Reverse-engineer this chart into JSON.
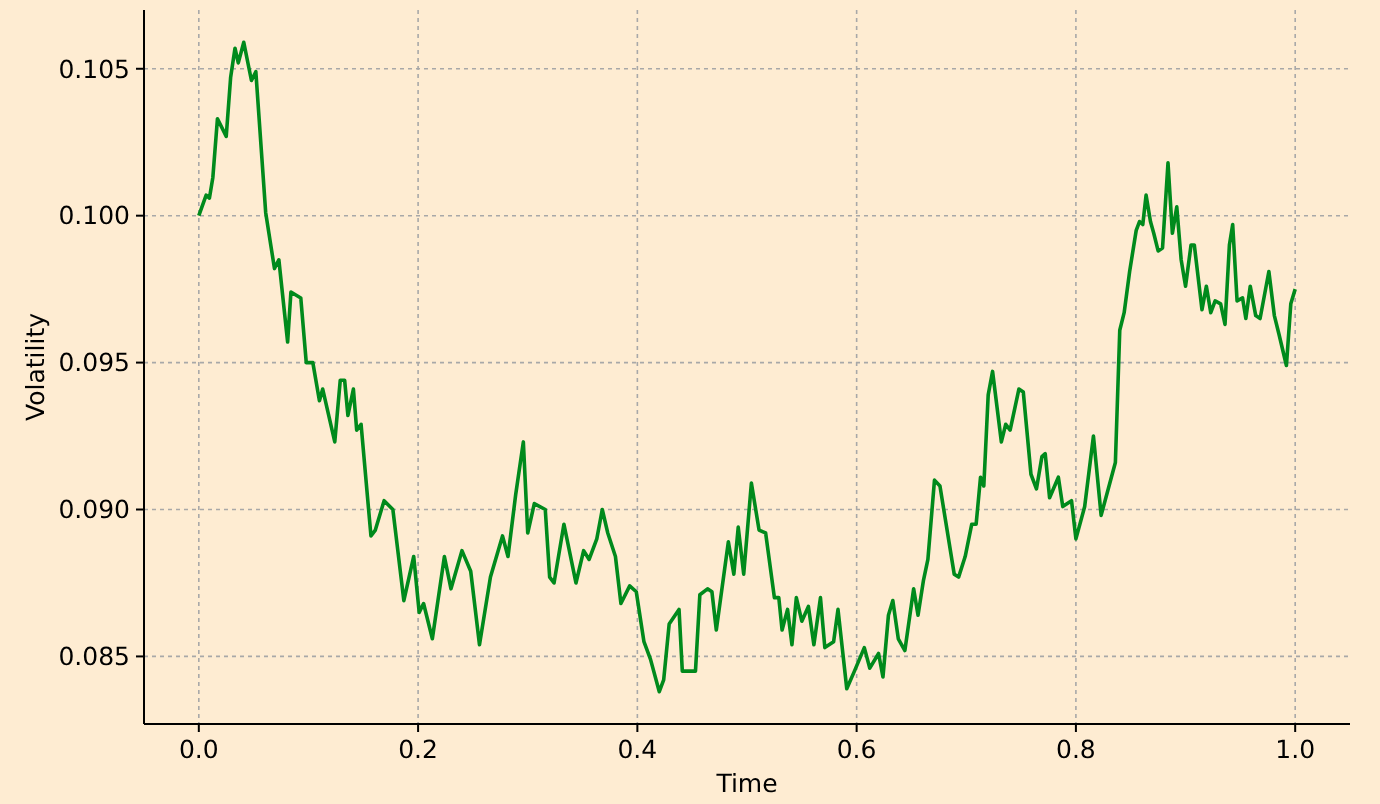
{
  "chart_data": {
    "type": "line",
    "xlabel": "Time",
    "ylabel": "Volatility",
    "xlim": [
      -0.05,
      1.05
    ],
    "ylim": [
      0.0827,
      0.107
    ],
    "xticks": [
      {
        "value": 0,
        "label": "0.0"
      },
      {
        "value": 0.2,
        "label": "0.2"
      },
      {
        "value": 0.4,
        "label": "0.4"
      },
      {
        "value": 0.6,
        "label": "0.6"
      },
      {
        "value": 0.8,
        "label": "0.8"
      },
      {
        "value": 1,
        "label": "1.0"
      }
    ],
    "yticks": [
      {
        "value": 0.085,
        "label": "0.085"
      },
      {
        "value": 0.09,
        "label": "0.090"
      },
      {
        "value": 0.095,
        "label": "0.095"
      },
      {
        "value": 0.1,
        "label": "0.100"
      },
      {
        "value": 0.105,
        "label": "0.105"
      }
    ],
    "grid": true,
    "line_style": "solid",
    "marker": "none",
    "series": [
      {
        "color": "#008a1c",
        "x": [
          0,
          0.0067,
          0.0097,
          0.0128,
          0.017,
          0.025,
          0.029,
          0.033,
          0.036,
          0.041,
          0.048,
          0.052,
          0.061,
          0.069,
          0.073,
          0.081,
          0.084,
          0.093,
          0.098,
          0.104,
          0.11,
          0.113,
          0.124,
          0.129,
          0.133,
          0.136,
          0.141,
          0.144,
          0.148,
          0.157,
          0.161,
          0.169,
          0.177,
          0.187,
          0.196,
          0.201,
          0.205,
          0.213,
          0.224,
          0.23,
          0.24,
          0.248,
          0.256,
          0.266,
          0.277,
          0.282,
          0.289,
          0.296,
          0.3,
          0.306,
          0.316,
          0.32,
          0.324,
          0.333,
          0.344,
          0.351,
          0.356,
          0.363,
          0.368,
          0.373,
          0.38,
          0.385,
          0.393,
          0.399,
          0.406,
          0.412,
          0.42,
          0.424,
          0.429,
          0.438,
          0.441,
          0.453,
          0.457,
          0.464,
          0.468,
          0.472,
          0.483,
          0.488,
          0.492,
          0.497,
          0.504,
          0.511,
          0.517,
          0.525,
          0.529,
          0.532,
          0.537,
          0.541,
          0.545,
          0.55,
          0.556,
          0.561,
          0.567,
          0.571,
          0.579,
          0.583,
          0.591,
          0.598,
          0.607,
          0.612,
          0.62,
          0.624,
          0.629,
          0.633,
          0.638,
          0.644,
          0.652,
          0.656,
          0.661,
          0.665,
          0.671,
          0.676,
          0.689,
          0.693,
          0.699,
          0.705,
          0.709,
          0.713,
          0.716,
          0.72,
          0.724,
          0.732,
          0.736,
          0.74,
          0.748,
          0.752,
          0.759,
          0.764,
          0.769,
          0.772,
          0.776,
          0.784,
          0.788,
          0.796,
          0.8,
          0.808,
          0.816,
          0.823,
          0.836,
          0.84,
          0.844,
          0.849,
          0.855,
          0.858,
          0.861,
          0.864,
          0.868,
          0.871,
          0.875,
          0.879,
          0.884,
          0.888,
          0.892,
          0.896,
          0.9,
          0.905,
          0.908,
          0.915,
          0.919,
          0.923,
          0.927,
          0.932,
          0.936,
          0.94,
          0.943,
          0.947,
          0.952,
          0.955,
          0.959,
          0.964,
          0.968,
          0.976,
          0.981,
          0.985,
          0.992,
          0.996,
          1.0
        ],
        "values": [
          0.1,
          0.1007,
          0.1006,
          0.1013,
          0.1033,
          0.1027,
          0.1047,
          0.1057,
          0.1052,
          0.1059,
          0.1046,
          0.1049,
          0.1001,
          0.0982,
          0.0985,
          0.0957,
          0.0974,
          0.0972,
          0.095,
          0.095,
          0.0937,
          0.0941,
          0.0923,
          0.0944,
          0.0944,
          0.0932,
          0.0941,
          0.0927,
          0.0929,
          0.0891,
          0.0893,
          0.0903,
          0.09,
          0.0869,
          0.0884,
          0.0865,
          0.0868,
          0.0856,
          0.0884,
          0.0873,
          0.0886,
          0.0879,
          0.0854,
          0.0877,
          0.0891,
          0.0884,
          0.0905,
          0.0923,
          0.0892,
          0.0902,
          0.09,
          0.0877,
          0.0875,
          0.0895,
          0.0875,
          0.0886,
          0.0883,
          0.089,
          0.09,
          0.0892,
          0.0884,
          0.0868,
          0.0874,
          0.0872,
          0.0855,
          0.0849,
          0.0838,
          0.0842,
          0.0861,
          0.0866,
          0.0845,
          0.0845,
          0.0871,
          0.0873,
          0.0872,
          0.0859,
          0.0889,
          0.0878,
          0.0894,
          0.0878,
          0.0909,
          0.0893,
          0.0892,
          0.087,
          0.087,
          0.0859,
          0.0866,
          0.0854,
          0.087,
          0.0862,
          0.0867,
          0.0854,
          0.087,
          0.0853,
          0.0855,
          0.0866,
          0.0839,
          0.0845,
          0.0853,
          0.0846,
          0.0851,
          0.0843,
          0.0864,
          0.0869,
          0.0856,
          0.0852,
          0.0873,
          0.0864,
          0.0876,
          0.0883,
          0.091,
          0.0908,
          0.0878,
          0.0877,
          0.0884,
          0.0895,
          0.0895,
          0.0911,
          0.0908,
          0.0939,
          0.0947,
          0.0923,
          0.0929,
          0.0927,
          0.0941,
          0.094,
          0.0912,
          0.0907,
          0.0918,
          0.0919,
          0.0904,
          0.0911,
          0.0901,
          0.0903,
          0.089,
          0.0901,
          0.0925,
          0.0898,
          0.0916,
          0.0961,
          0.0967,
          0.0981,
          0.0995,
          0.0998,
          0.0997,
          0.1007,
          0.0998,
          0.0994,
          0.0988,
          0.0989,
          0.1018,
          0.0994,
          0.1003,
          0.0985,
          0.0976,
          0.099,
          0.099,
          0.0968,
          0.0976,
          0.0967,
          0.0971,
          0.097,
          0.0963,
          0.099,
          0.0997,
          0.0971,
          0.0972,
          0.0965,
          0.0976,
          0.0966,
          0.0965,
          0.0981,
          0.0966,
          0.096,
          0.0949,
          0.097,
          0.0975
        ]
      }
    ]
  }
}
